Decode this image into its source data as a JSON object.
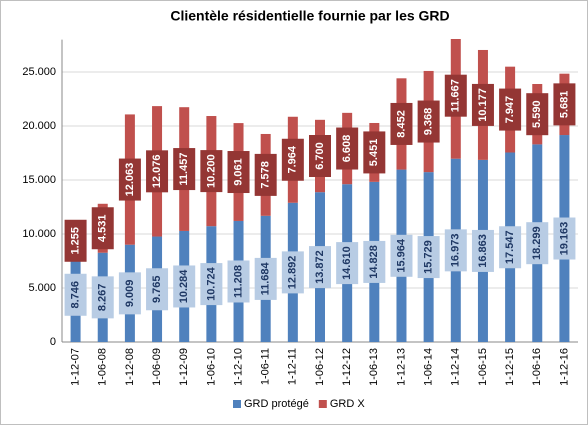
{
  "chart_data": {
    "type": "bar",
    "stacked": true,
    "title": "Clientèle résidentielle fournie par les GRD",
    "categories": [
      "1-12-07",
      "1-06-08",
      "1-12-08",
      "1-06-09",
      "1-12-09",
      "1-06-10",
      "1-12-10",
      "1-06-11",
      "1-12-11",
      "1-06-12",
      "1-12-12",
      "1-06-13",
      "1-12-13",
      "1-06-14",
      "1-12-14",
      "1-06-15",
      "1-12-15",
      "1-06-16",
      "1-12-16"
    ],
    "series": [
      {
        "name": "GRD protégé",
        "color": "#4f81bd",
        "label_box": "#b8cce4",
        "label_color": "#1f3864",
        "values": [
          8746,
          8267,
          9009,
          9765,
          10284,
          10724,
          11208,
          11684,
          12892,
          13872,
          14610,
          14828,
          15964,
          15729,
          16973,
          16863,
          17547,
          18299,
          19163
        ],
        "value_labels": [
          "8.746",
          "8.267",
          "9.009",
          "9.765",
          "10.284",
          "10.724",
          "11.208",
          "11.684",
          "12.892",
          "13.872",
          "14.610",
          "14.828",
          "15.964",
          "15.729",
          "16.973",
          "16.863",
          "17.547",
          "18.299",
          "19.163"
        ]
      },
      {
        "name": "GRD X",
        "color": "#c0504d",
        "label_box": "#943634",
        "label_color": "#ffffff",
        "values": [
          1255,
          4531,
          12063,
          12076,
          11457,
          10200,
          9061,
          7578,
          7964,
          6700,
          6608,
          5451,
          8452,
          9368,
          11667,
          10177,
          7947,
          5590,
          5681
        ],
        "value_labels": [
          "1.255",
          "4.531",
          "12.063",
          "12.076",
          "11.457",
          "10.200",
          "9.061",
          "7.578",
          "7.964",
          "6.700",
          "6.608",
          "5.451",
          "8.452",
          "9.368",
          "11.667",
          "10.177",
          "7.947",
          "5.590",
          "5.681"
        ]
      }
    ],
    "ylim": [
      0,
      28000
    ],
    "yticks": [
      0,
      {
        "value": 5000,
        "label": "5.000"
      },
      {
        "value": 10000,
        "label": "10.000"
      },
      {
        "value": 15000,
        "label": "15.000"
      },
      {
        "value": 20000,
        "label": "20.000"
      },
      {
        "value": 25000,
        "label": "25.000"
      }
    ],
    "grid": true,
    "legend": "bottom"
  }
}
